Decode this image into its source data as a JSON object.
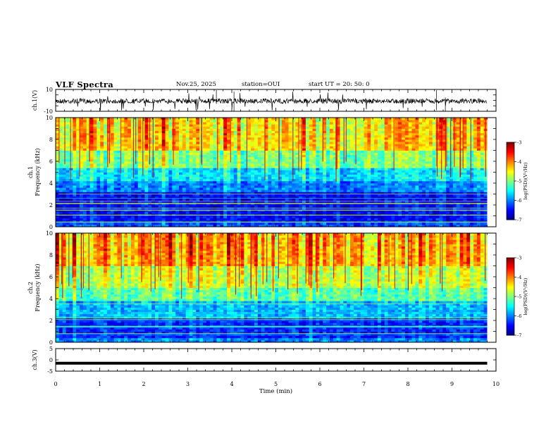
{
  "header": {
    "title": "VLF Spectra",
    "date": "Nov.25, 2025",
    "station": "station=OUI",
    "start_ut": "start UT =  20: 50: 0"
  },
  "chart_data": [
    {
      "type": "line",
      "panel": "ch1-waveform",
      "ylabel": "ch.1(V)",
      "ylim": [
        -10,
        10
      ],
      "y_ticks": [
        "10",
        "-10"
      ],
      "xlim": [
        0,
        10
      ],
      "baseline": 0,
      "color": "#000000"
    },
    {
      "type": "heatmap",
      "panel": "ch1-spectrogram",
      "ylabel_top": "ch.1",
      "ylabel": "Frequency (kHz)",
      "ylim": [
        0,
        10
      ],
      "y_ticks": [
        "0",
        "2",
        "4",
        "6",
        "8",
        "10"
      ],
      "xlim": [
        0,
        10
      ],
      "data_end_min": 9.8,
      "colorbar": {
        "label": "log(PSD)(V²/Hz)",
        "range": [
          -7,
          -3
        ],
        "ticks": [
          "-3",
          "-4",
          "-5",
          "-6",
          "-7"
        ]
      },
      "levels_by_band": [
        {
          "freq_khz": [
            0,
            0.5
          ],
          "log_psd": -6.2
        },
        {
          "freq_khz": [
            0.5,
            3.2
          ],
          "log_psd": -6.5
        },
        {
          "freq_khz": [
            3.2,
            4.2
          ],
          "log_psd": -6.0
        },
        {
          "freq_khz": [
            4.2,
            5.5
          ],
          "log_psd": -5.6
        },
        {
          "freq_khz": [
            5.5,
            7.0
          ],
          "log_psd": -5.0
        },
        {
          "freq_khz": [
            7.0,
            10
          ],
          "log_psd": -4.4
        }
      ]
    },
    {
      "type": "heatmap",
      "panel": "ch2-spectrogram",
      "ylabel_top": "ch.2",
      "ylabel": "Frequency (kHz)",
      "ylim": [
        0,
        10
      ],
      "y_ticks": [
        "0",
        "2",
        "4",
        "6",
        "8",
        "10"
      ],
      "xlim": [
        0,
        10
      ],
      "data_end_min": 9.8,
      "colorbar": {
        "label": "log(PSD)(V²/Hz)",
        "range": [
          -7,
          -3
        ],
        "ticks": [
          "-3",
          "-4",
          "-5",
          "-6",
          "-7"
        ]
      },
      "levels_by_band": [
        {
          "freq_khz": [
            0,
            0.5
          ],
          "log_psd": -6.0
        },
        {
          "freq_khz": [
            0.5,
            2.2
          ],
          "log_psd": -6.4
        },
        {
          "freq_khz": [
            2.2,
            3.8
          ],
          "log_psd": -5.8
        },
        {
          "freq_khz": [
            3.8,
            5.0
          ],
          "log_psd": -5.2
        },
        {
          "freq_khz": [
            5.0,
            7.0
          ],
          "log_psd": -4.8
        },
        {
          "freq_khz": [
            7.0,
            10
          ],
          "log_psd": -4.3
        }
      ]
    },
    {
      "type": "line",
      "panel": "ch3-waveform",
      "ylabel": "ch.3(V)",
      "ylim": [
        -5,
        5
      ],
      "y_ticks": [
        "5",
        "0",
        "-5"
      ],
      "xlim": [
        0,
        10
      ],
      "x_ticks": [
        "0",
        "1",
        "2",
        "3",
        "4",
        "5",
        "6",
        "7",
        "8",
        "9",
        "10"
      ],
      "xlabel": "Time (min)",
      "level": -1.5,
      "color": "#000000"
    }
  ]
}
